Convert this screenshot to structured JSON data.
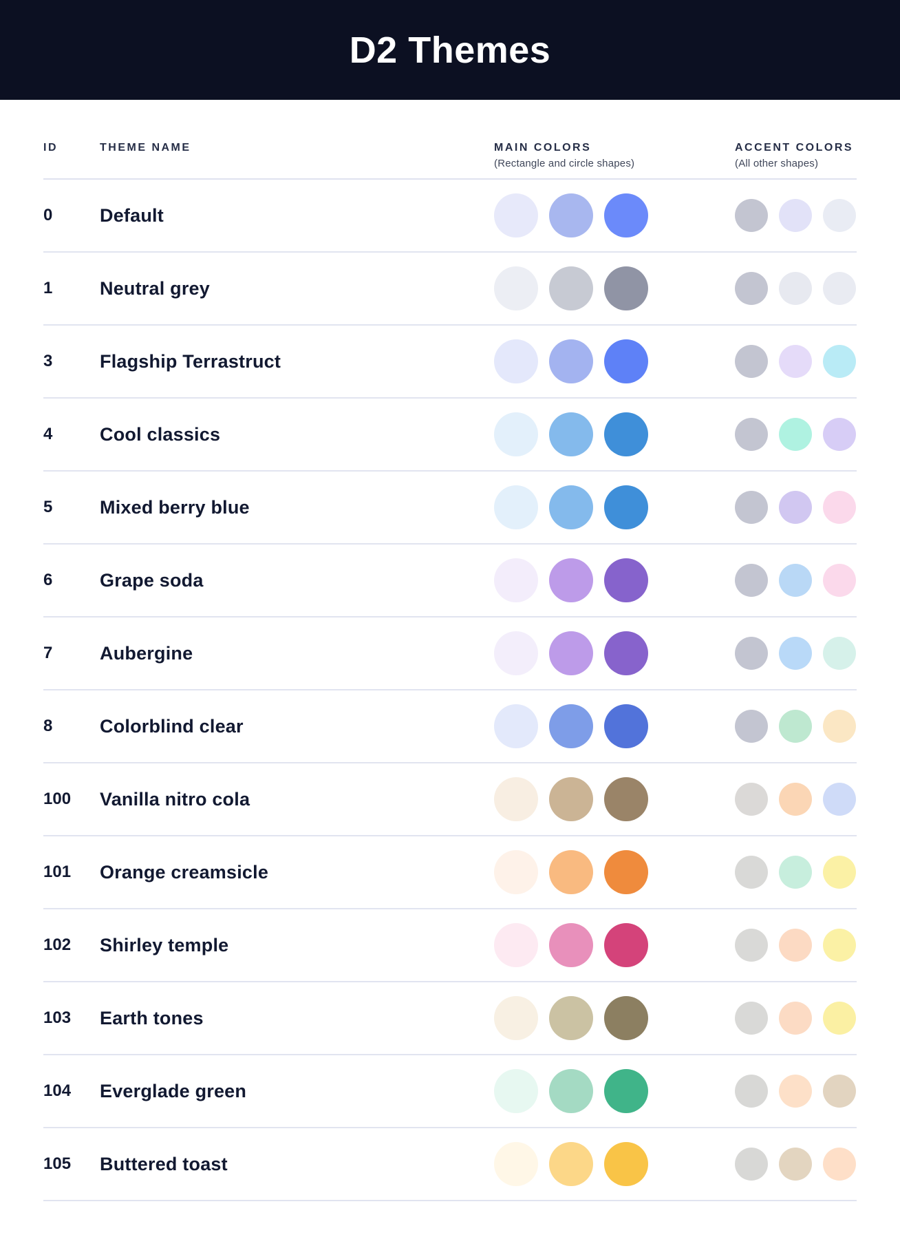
{
  "header": {
    "title": "D2 Themes",
    "background": "#0c1022",
    "text_color": "#ffffff"
  },
  "table": {
    "columns": {
      "id": "ID",
      "name": "THEME NAME",
      "main": {
        "label": "MAIN COLORS",
        "sub": "(Rectangle and circle shapes)"
      },
      "accent": {
        "label": "ACCENT COLORS",
        "sub": "(All other shapes)"
      }
    },
    "rows": [
      {
        "id": "0",
        "name": "Default",
        "main": [
          "#e7e9fa",
          "#a8b7ef",
          "#6b8afa"
        ],
        "accent": [
          "#c3c5d1",
          "#e2e2f8",
          "#e9ecf4"
        ]
      },
      {
        "id": "1",
        "name": "Neutral grey",
        "main": [
          "#eceef4",
          "#c7cad3",
          "#9094a5"
        ],
        "accent": [
          "#c3c5d1",
          "#e7e9f0",
          "#e9ebf2"
        ]
      },
      {
        "id": "3",
        "name": "Flagship Terrastruct",
        "main": [
          "#e4e8fb",
          "#a3b3f0",
          "#5e81f7"
        ],
        "accent": [
          "#c3c5d1",
          "#e5dbf9",
          "#b9ebf6"
        ]
      },
      {
        "id": "4",
        "name": "Cool classics",
        "main": [
          "#e3f0fb",
          "#84baec",
          "#3f8fd9"
        ],
        "accent": [
          "#c3c5d1",
          "#aff2e1",
          "#d7cdf6"
        ]
      },
      {
        "id": "5",
        "name": "Mixed berry blue",
        "main": [
          "#e3f0fb",
          "#84baec",
          "#3f8fd9"
        ],
        "accent": [
          "#c3c5d1",
          "#d1c7f1",
          "#fbd9eb"
        ]
      },
      {
        "id": "6",
        "name": "Grape soda",
        "main": [
          "#f3edfb",
          "#bd9be9",
          "#8663cc"
        ],
        "accent": [
          "#c3c5d1",
          "#b9d8f6",
          "#fbd9eb"
        ]
      },
      {
        "id": "7",
        "name": "Aubergine",
        "main": [
          "#f3eefb",
          "#bd9be9",
          "#8763cc"
        ],
        "accent": [
          "#c3c5d1",
          "#b9d9f8",
          "#d6f1ea"
        ]
      },
      {
        "id": "8",
        "name": "Colorblind clear",
        "main": [
          "#e3e9fb",
          "#7e9de8",
          "#5273da"
        ],
        "accent": [
          "#c3c5d1",
          "#bee8d0",
          "#fbe7c4"
        ]
      },
      {
        "id": "100",
        "name": "Vanilla nitro cola",
        "main": [
          "#f8eee2",
          "#cbb495",
          "#9a8468"
        ],
        "accent": [
          "#dbd9d7",
          "#fbd6b5",
          "#cfdbf8"
        ]
      },
      {
        "id": "101",
        "name": "Orange creamsicle",
        "main": [
          "#fef2e9",
          "#f9ba80",
          "#ef8b3d"
        ],
        "accent": [
          "#d9d9d7",
          "#c7eedd",
          "#fbf1a5"
        ]
      },
      {
        "id": "102",
        "name": "Shirley temple",
        "main": [
          "#fdeaf2",
          "#e890bb",
          "#d4437a"
        ],
        "accent": [
          "#d9d9d7",
          "#fcdac3",
          "#fbf1a5"
        ]
      },
      {
        "id": "103",
        "name": "Earth tones",
        "main": [
          "#f8f0e3",
          "#cbc2a3",
          "#8c7f61"
        ],
        "accent": [
          "#d9d9d7",
          "#fcdbc4",
          "#fbf0a3"
        ]
      },
      {
        "id": "104",
        "name": "Everglade green",
        "main": [
          "#e7f8f1",
          "#a4dac3",
          "#40b489"
        ],
        "accent": [
          "#d8d8d6",
          "#fde0c8",
          "#e2d4c0"
        ]
      },
      {
        "id": "105",
        "name": "Buttered toast",
        "main": [
          "#fff7e7",
          "#fcd788",
          "#f9c447"
        ],
        "accent": [
          "#d8d8d6",
          "#e3d5c0",
          "#fedfc8"
        ]
      }
    ]
  }
}
